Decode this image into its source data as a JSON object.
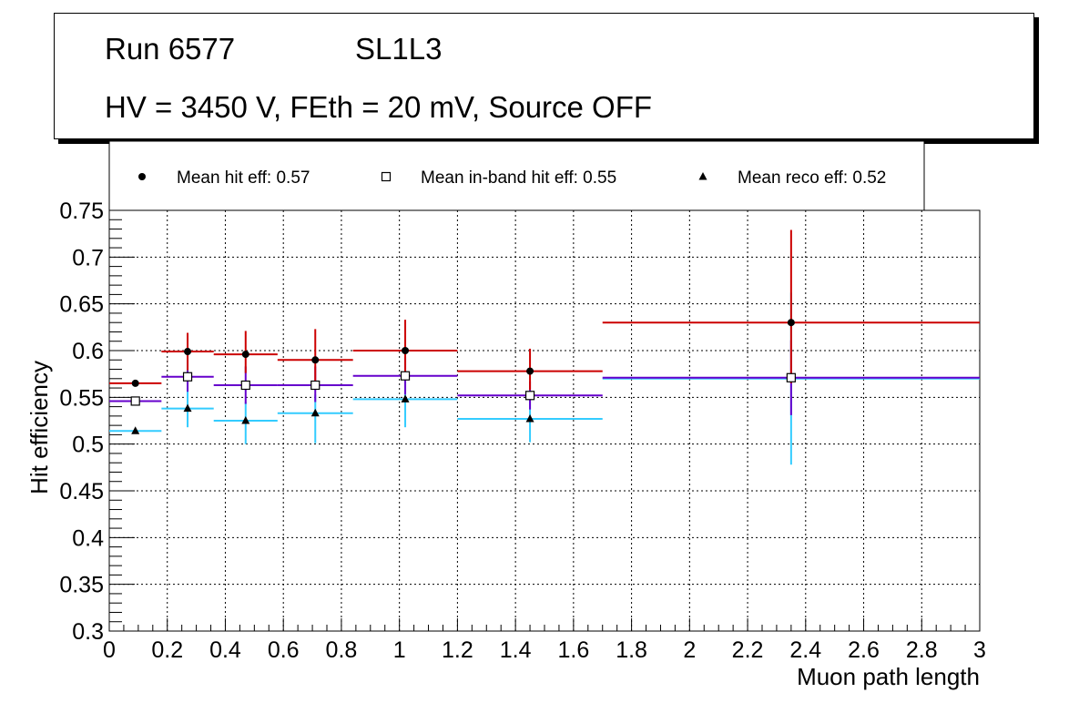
{
  "header": {
    "run": "Run 6577",
    "layer": "SL1L3",
    "conditions": "HV = 3450 V, FEth = 20 mV, Source OFF"
  },
  "legend": {
    "items": [
      {
        "marker": "circle",
        "label": "Mean hit  eff: 0.57"
      },
      {
        "marker": "open-square",
        "label": "Mean in-band hit eff: 0.55"
      },
      {
        "marker": "triangle",
        "label": "Mean reco eff: 0.52"
      }
    ]
  },
  "colors": {
    "hit": "#cc0000",
    "inband": "#6600cc",
    "reco": "#33ccff",
    "axis": "#000000",
    "grid": "#000000"
  },
  "chart_data": {
    "type": "scatter",
    "title": "",
    "xlabel": "Muon path length",
    "ylabel": "Hit efficiency",
    "xlim": [
      0,
      3
    ],
    "ylim": [
      0.3,
      0.75
    ],
    "grid": true,
    "x_ticks": [
      "0",
      "0.2",
      "0.4",
      "0.6",
      "0.8",
      "1",
      "1.2",
      "1.4",
      "1.6",
      "1.8",
      "2",
      "2.2",
      "2.4",
      "2.6",
      "2.8",
      "3"
    ],
    "y_ticks": [
      "0.3",
      "0.35",
      "0.4",
      "0.45",
      "0.5",
      "0.55",
      "0.6",
      "0.65",
      "0.7",
      "0.75"
    ],
    "bins": [
      [
        0,
        0.18
      ],
      [
        0.18,
        0.36
      ],
      [
        0.36,
        0.58
      ],
      [
        0.58,
        0.84
      ],
      [
        0.84,
        1.2
      ],
      [
        1.2,
        1.7
      ],
      [
        1.7,
        3.0
      ]
    ],
    "series": [
      {
        "name": "Mean hit eff",
        "marker": "circle",
        "color_key": "hit",
        "x": [
          0.09,
          0.27,
          0.47,
          0.71,
          1.02,
          1.45,
          2.35
        ],
        "values": [
          0.565,
          0.599,
          0.596,
          0.59,
          0.6,
          0.578,
          0.63
        ],
        "yerr_low": [
          0.0,
          0.02,
          0.02,
          0.025,
          0.025,
          0.02,
          0.065
        ],
        "yerr_high": [
          0.0,
          0.02,
          0.025,
          0.033,
          0.033,
          0.024,
          0.099
        ]
      },
      {
        "name": "Mean in-band hit eff",
        "marker": "open-square",
        "color_key": "inband",
        "x": [
          0.09,
          0.27,
          0.47,
          0.71,
          1.02,
          1.45,
          2.35
        ],
        "values": [
          0.546,
          0.572,
          0.563,
          0.563,
          0.573,
          0.552,
          0.571
        ],
        "yerr_low": [
          0.0,
          0.016,
          0.02,
          0.018,
          0.02,
          0.015,
          0.04
        ],
        "yerr_high": [
          0.0,
          0.018,
          0.02,
          0.02,
          0.02,
          0.015,
          0.04
        ]
      },
      {
        "name": "Mean reco eff",
        "marker": "triangle",
        "color_key": "reco",
        "x": [
          0.09,
          0.27,
          0.47,
          0.71,
          1.02,
          1.45,
          2.35
        ],
        "values": [
          0.514,
          0.538,
          0.525,
          0.533,
          0.548,
          0.527,
          0.57
        ],
        "yerr_low": [
          0.0,
          0.02,
          0.025,
          0.032,
          0.03,
          0.025,
          0.092
        ],
        "yerr_high": [
          0.0,
          0.02,
          0.02,
          0.02,
          0.02,
          0.02,
          0.092
        ]
      }
    ]
  }
}
